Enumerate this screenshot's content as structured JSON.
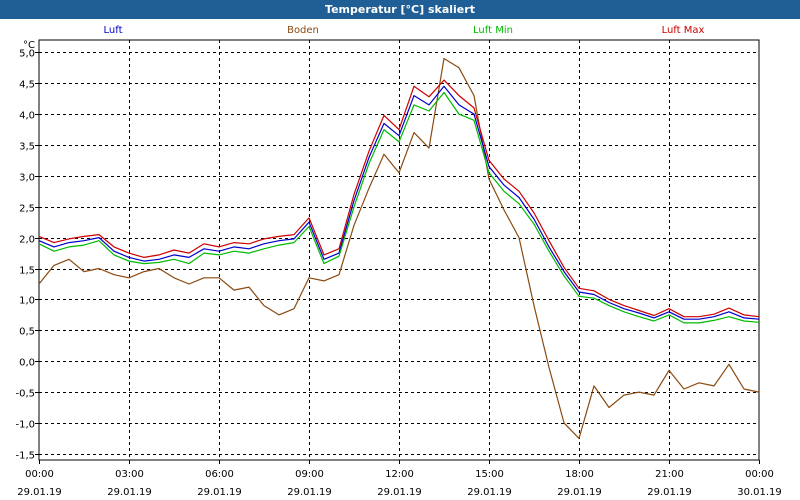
{
  "window": {
    "title": "Temperatur [°C] skaliert"
  },
  "chart_data": {
    "type": "line",
    "title": "Temperatur [°C] skaliert",
    "ylabel": "°C",
    "ylim": [
      -1.6,
      5.2
    ],
    "yticks": [
      5.0,
      4.5,
      4.0,
      3.5,
      3.0,
      2.5,
      2.0,
      1.5,
      1.0,
      0.5,
      0.0,
      -0.5,
      -1.0,
      -1.5
    ],
    "yticklabels": [
      "5,0",
      "4,5",
      "4,0",
      "3,5",
      "3,0",
      "2,5",
      "2,0",
      "1,5",
      "1,0",
      "0,5",
      "0,0",
      "-0,5",
      "-1,0",
      "-1,5"
    ],
    "xlim": [
      0,
      24
    ],
    "xticks": [
      0,
      3,
      6,
      9,
      12,
      15,
      18,
      21,
      24
    ],
    "xticklabels_time": [
      "00:00",
      "03:00",
      "06:00",
      "09:00",
      "12:00",
      "15:00",
      "18:00",
      "21:00",
      "00:00"
    ],
    "xticklabels_date": [
      "29.01.19",
      "29.01.19",
      "29.01.19",
      "29.01.19",
      "29.01.19",
      "29.01.19",
      "29.01.19",
      "29.01.19",
      "30.01.19"
    ],
    "grid": true,
    "x": [
      0,
      0.5,
      1,
      1.5,
      2,
      2.5,
      3,
      3.5,
      4,
      4.5,
      5,
      5.5,
      6,
      6.5,
      7,
      7.5,
      8,
      8.5,
      9,
      9.5,
      10,
      10.5,
      11,
      11.5,
      12,
      12.5,
      13,
      13.5,
      14,
      14.5,
      15,
      15.5,
      16,
      16.5,
      17,
      17.5,
      18,
      18.5,
      19,
      19.5,
      20,
      20.5,
      21,
      21.5,
      22,
      22.5,
      23,
      23.5,
      24
    ],
    "series": [
      {
        "name": "Luft",
        "color": "#0000cc",
        "values": [
          1.95,
          1.85,
          1.92,
          1.95,
          2.0,
          1.78,
          1.68,
          1.62,
          1.65,
          1.72,
          1.68,
          1.82,
          1.78,
          1.85,
          1.82,
          1.9,
          1.95,
          1.98,
          2.25,
          1.65,
          1.75,
          2.6,
          3.3,
          3.85,
          3.65,
          4.3,
          4.15,
          4.45,
          4.15,
          4.0,
          3.15,
          2.85,
          2.65,
          2.3,
          1.85,
          1.45,
          1.12,
          1.08,
          0.95,
          0.85,
          0.78,
          0.7,
          0.8,
          0.68,
          0.68,
          0.72,
          0.8,
          0.7,
          0.68
        ]
      },
      {
        "name": "Boden",
        "color": "#8b4a10",
        "values": [
          1.25,
          1.55,
          1.65,
          1.45,
          1.5,
          1.4,
          1.35,
          1.45,
          1.5,
          1.35,
          1.25,
          1.35,
          1.35,
          1.15,
          1.2,
          0.9,
          0.75,
          0.85,
          1.35,
          1.3,
          1.4,
          2.2,
          2.8,
          3.35,
          3.05,
          3.7,
          3.45,
          4.9,
          4.75,
          4.3,
          2.95,
          2.45,
          2.0,
          0.9,
          -0.1,
          -1.0,
          -1.25,
          -0.4,
          -0.75,
          -0.55,
          -0.5,
          -0.55,
          -0.15,
          -0.45,
          -0.35,
          -0.4,
          -0.05,
          -0.45,
          -0.5
        ]
      },
      {
        "name": "Luft Min",
        "color": "#00bb00",
        "values": [
          1.9,
          1.78,
          1.85,
          1.88,
          1.95,
          1.72,
          1.62,
          1.58,
          1.6,
          1.65,
          1.58,
          1.75,
          1.72,
          1.78,
          1.75,
          1.82,
          1.88,
          1.92,
          2.18,
          1.58,
          1.7,
          2.5,
          3.2,
          3.75,
          3.55,
          4.15,
          4.05,
          4.35,
          4.0,
          3.9,
          3.05,
          2.75,
          2.55,
          2.22,
          1.78,
          1.38,
          1.05,
          1.02,
          0.9,
          0.8,
          0.72,
          0.65,
          0.75,
          0.62,
          0.62,
          0.66,
          0.72,
          0.65,
          0.63
        ]
      },
      {
        "name": "Luft Max",
        "color": "#cc0000",
        "values": [
          2.02,
          1.92,
          1.98,
          2.02,
          2.05,
          1.85,
          1.75,
          1.68,
          1.72,
          1.8,
          1.75,
          1.9,
          1.85,
          1.92,
          1.9,
          1.98,
          2.02,
          2.05,
          2.32,
          1.72,
          1.82,
          2.7,
          3.4,
          3.98,
          3.75,
          4.45,
          4.28,
          4.55,
          4.3,
          4.1,
          3.25,
          2.95,
          2.75,
          2.4,
          1.95,
          1.52,
          1.18,
          1.14,
          1.0,
          0.9,
          0.82,
          0.74,
          0.85,
          0.72,
          0.72,
          0.76,
          0.86,
          0.75,
          0.72
        ]
      }
    ]
  }
}
